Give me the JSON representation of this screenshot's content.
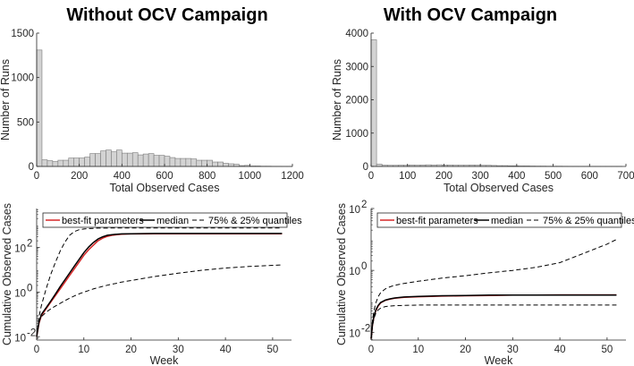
{
  "chart_data": [
    {
      "id": "hist-without",
      "type": "bar",
      "title": "Without OCV Campaign",
      "xlabel": "Total Observed Cases",
      "ylabel": "Number of Runs",
      "xlim": [
        0,
        1200
      ],
      "ylim": [
        0,
        1500
      ],
      "xticks": [
        "0",
        "200",
        "400",
        "600",
        "800",
        "1000",
        "1200"
      ],
      "yticks": [
        "0",
        "500",
        "1000",
        "1500"
      ],
      "bin_width": 25,
      "bar_color": "#d3d3d3",
      "values": [
        1310,
        75,
        65,
        55,
        70,
        70,
        95,
        95,
        95,
        105,
        145,
        145,
        175,
        185,
        165,
        185,
        150,
        150,
        155,
        130,
        140,
        145,
        125,
        125,
        115,
        100,
        90,
        90,
        90,
        85,
        70,
        70,
        70,
        50,
        50,
        35,
        30,
        25,
        10,
        12,
        5,
        5,
        3,
        3,
        2,
        2,
        1,
        1
      ]
    },
    {
      "id": "hist-with",
      "type": "bar",
      "title": "With OCV Campaign",
      "xlabel": "Total Observed Cases",
      "ylabel": "Number of Runs",
      "xlim": [
        0,
        700
      ],
      "ylim": [
        0,
        4000
      ],
      "xticks": [
        "0",
        "100",
        "200",
        "300",
        "400",
        "500",
        "600",
        "700"
      ],
      "yticks": [
        "0",
        "1000",
        "2000",
        "3000",
        "4000"
      ],
      "bin_width": 15,
      "bar_color": "#d3d3d3",
      "values": [
        3800,
        70,
        40,
        35,
        35,
        40,
        35,
        45,
        40,
        45,
        50,
        45,
        50,
        45,
        45,
        40,
        40,
        40,
        45,
        40,
        35,
        35,
        30,
        25,
        25,
        20,
        20,
        15,
        15,
        12,
        10,
        10,
        8,
        8,
        8,
        6,
        5,
        5,
        4,
        4,
        3,
        3,
        3,
        2,
        2,
        2
      ]
    },
    {
      "id": "line-without",
      "type": "line",
      "xlabel": "Week",
      "ylabel": "Cumulative Observed Cases",
      "yscale": "log",
      "xlim": [
        0,
        54
      ],
      "ylim_log10": [
        -2.15,
        3.75
      ],
      "xticks": [
        "0",
        "10",
        "20",
        "30",
        "40",
        "50"
      ],
      "yticks": [
        {
          "base": "10",
          "exp": "-2",
          "log": -2
        },
        {
          "base": "10",
          "exp": "0",
          "log": 0
        },
        {
          "base": "10",
          "exp": "2",
          "log": 2
        }
      ],
      "legend": {
        "position": "top",
        "entries": [
          "best-fit parameters",
          "median",
          "75% & 25% quantiles"
        ]
      },
      "x": [
        0,
        0.5,
        1,
        2,
        3,
        4,
        5,
        6,
        7,
        8,
        9,
        10,
        11,
        12,
        13,
        14,
        15,
        16,
        17,
        18,
        20,
        25,
        30,
        35,
        40,
        45,
        50,
        52
      ],
      "series": [
        {
          "name": "best-fit parameters",
          "color": "#d62728",
          "style": "solid",
          "log10": [
            -2.0,
            -1.4,
            -1.05,
            -0.75,
            -0.45,
            -0.15,
            0.15,
            0.45,
            0.75,
            1.05,
            1.35,
            1.65,
            1.9,
            2.1,
            2.3,
            2.42,
            2.5,
            2.55,
            2.58,
            2.6,
            2.61,
            2.62,
            2.62,
            2.62,
            2.62,
            2.62,
            2.62,
            2.62
          ]
        },
        {
          "name": "median",
          "color": "#000000",
          "style": "solid",
          "log10": [
            -2.0,
            -1.35,
            -1.0,
            -0.7,
            -0.4,
            -0.08,
            0.25,
            0.56,
            0.86,
            1.17,
            1.47,
            1.77,
            2.02,
            2.22,
            2.38,
            2.48,
            2.55,
            2.58,
            2.6,
            2.61,
            2.62,
            2.63,
            2.63,
            2.63,
            2.63,
            2.63,
            2.63,
            2.63
          ]
        },
        {
          "name": "75% quantile",
          "color": "#000000",
          "style": "dashed",
          "log10": [
            -2.0,
            -1.1,
            -0.6,
            0.15,
            0.8,
            1.35,
            1.85,
            2.25,
            2.55,
            2.72,
            2.8,
            2.83,
            2.85,
            2.86,
            2.87,
            2.87,
            2.87,
            2.88,
            2.88,
            2.88,
            2.88,
            2.88,
            2.88,
            2.88,
            2.88,
            2.88,
            2.88,
            2.88
          ]
        },
        {
          "name": "25% quantile",
          "color": "#000000",
          "style": "dashed",
          "log10": [
            -2.0,
            -1.3,
            -1.1,
            -0.9,
            -0.75,
            -0.62,
            -0.5,
            -0.38,
            -0.27,
            -0.17,
            -0.08,
            0.0,
            0.07,
            0.14,
            0.2,
            0.26,
            0.31,
            0.36,
            0.4,
            0.45,
            0.52,
            0.7,
            0.85,
            0.98,
            1.08,
            1.15,
            1.2,
            1.22
          ]
        }
      ]
    },
    {
      "id": "line-with",
      "type": "line",
      "xlabel": "Week",
      "ylabel": "Cumulative Observed Cases",
      "yscale": "log",
      "xlim": [
        0,
        54
      ],
      "ylim_log10": [
        -2.25,
        2.0
      ],
      "xticks": [
        "0",
        "10",
        "20",
        "30",
        "40",
        "50"
      ],
      "yticks": [
        {
          "base": "10",
          "exp": "-2",
          "log": -2
        },
        {
          "base": "10",
          "exp": "0",
          "log": 0
        },
        {
          "base": "10",
          "exp": "2",
          "log": 2
        }
      ],
      "legend": {
        "position": "top",
        "entries": [
          "best-fit parameters",
          "median",
          "75% & 25% quantiles"
        ]
      },
      "x": [
        0,
        0.3,
        0.6,
        1,
        1.5,
        2,
        3,
        4,
        5,
        7,
        10,
        15,
        20,
        25,
        30,
        35,
        40,
        45,
        50,
        52
      ],
      "series": [
        {
          "name": "best-fit parameters",
          "color": "#d62728",
          "style": "solid",
          "log10": [
            -2.2,
            -1.75,
            -1.5,
            -1.3,
            -1.15,
            -1.05,
            -0.97,
            -0.93,
            -0.9,
            -0.87,
            -0.85,
            -0.83,
            -0.82,
            -0.81,
            -0.8,
            -0.8,
            -0.79,
            -0.79,
            -0.79,
            -0.79
          ]
        },
        {
          "name": "median",
          "color": "#000000",
          "style": "solid",
          "log10": [
            -2.2,
            -1.72,
            -1.48,
            -1.28,
            -1.13,
            -1.04,
            -0.96,
            -0.92,
            -0.89,
            -0.86,
            -0.84,
            -0.82,
            -0.81,
            -0.8,
            -0.8,
            -0.8,
            -0.8,
            -0.8,
            -0.8,
            -0.8
          ]
        },
        {
          "name": "75% quantile",
          "color": "#000000",
          "style": "dashed",
          "log10": [
            -2.2,
            -1.6,
            -1.3,
            -1.05,
            -0.85,
            -0.72,
            -0.6,
            -0.53,
            -0.48,
            -0.42,
            -0.35,
            -0.25,
            -0.17,
            -0.08,
            0.0,
            0.1,
            0.25,
            0.55,
            0.85,
            1.0
          ]
        },
        {
          "name": "25% quantile",
          "color": "#000000",
          "style": "dashed",
          "log10": [
            -2.2,
            -1.8,
            -1.55,
            -1.38,
            -1.28,
            -1.22,
            -1.17,
            -1.15,
            -1.14,
            -1.13,
            -1.12,
            -1.12,
            -1.12,
            -1.12,
            -1.12,
            -1.12,
            -1.12,
            -1.12,
            -1.12,
            -1.12
          ]
        }
      ]
    }
  ]
}
